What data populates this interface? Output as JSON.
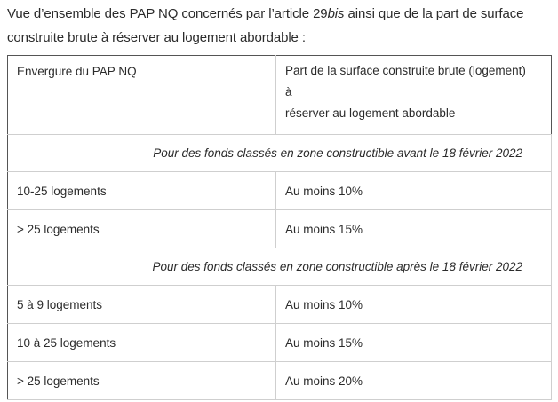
{
  "intro": {
    "before_italic": "Vue d’ensemble des PAP NQ concernés par l’article 29",
    "italic": "bis",
    "after_italic": " ainsi que de la part de surface construite brute à réserver au logement abordable :"
  },
  "table": {
    "header": {
      "col1": "Envergure du PAP NQ",
      "col2_line1": "Part de la surface construite brute (logement)",
      "col2_line2": "à",
      "col2_line3": "réserver au logement abordable"
    },
    "sections": [
      {
        "title": "Pour des fonds classés en zone constructible avant le 18 février 2022",
        "rows": [
          {
            "envergure": "10-25 logements",
            "part": "Au moins 10%"
          },
          {
            "envergure": "> 25 logements",
            "part": "Au moins 15%"
          }
        ]
      },
      {
        "title": "Pour des fonds classés en zone constructible après le 18 février 2022",
        "rows": [
          {
            "envergure": "5 à 9 logements",
            "part": "Au moins 10%"
          },
          {
            "envergure": "10 à 25 logements",
            "part": "Au moins 15%"
          },
          {
            "envergure": "> 25 logements",
            "part": "Au moins 20%"
          }
        ]
      }
    ]
  }
}
